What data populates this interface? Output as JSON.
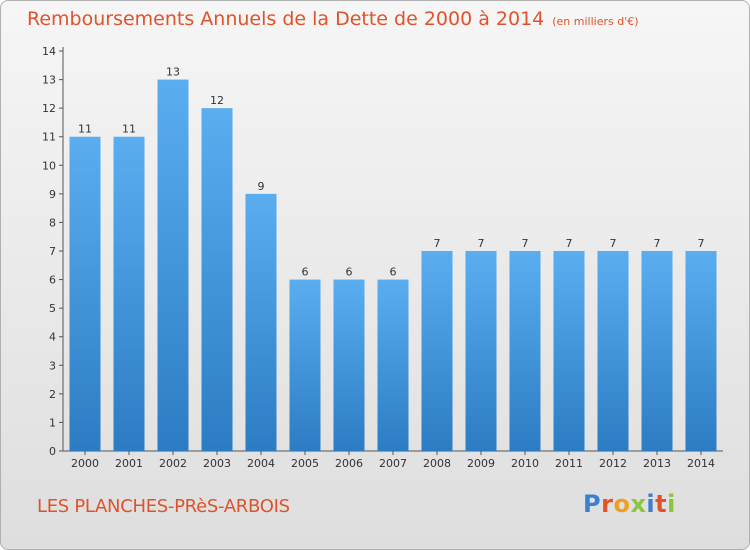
{
  "header": {
    "title": "Remboursements Annuels de la Dette de 2000 à 2014",
    "unit": "(en milliers d'€)"
  },
  "footer": {
    "commune": "LES PLANCHES-PRèS-ARBOIS",
    "logo": [
      "P",
      "r",
      "o",
      "x",
      "i",
      "t",
      "i"
    ]
  },
  "colors": {
    "title": "#e0532a",
    "bar_top": "#5aaef0",
    "bar_bottom": "#2c7cc3",
    "logo": [
      "#3a7fd1",
      "#e0532a",
      "#f0a020",
      "#8cc63f",
      "#3a7fd1",
      "#e0532a",
      "#8cc63f"
    ]
  },
  "chart_data": {
    "type": "bar",
    "categories": [
      "2000",
      "2001",
      "2002",
      "2003",
      "2004",
      "2005",
      "2006",
      "2007",
      "2008",
      "2009",
      "2010",
      "2011",
      "2012",
      "2013",
      "2014"
    ],
    "values": [
      11,
      11,
      13,
      12,
      9,
      6,
      6,
      6,
      7,
      7,
      7,
      7,
      7,
      7,
      7
    ],
    "ylim": [
      0,
      14
    ],
    "yticks": [
      0,
      1,
      2,
      3,
      4,
      5,
      6,
      7,
      8,
      9,
      10,
      11,
      12,
      13,
      14
    ],
    "grid": false,
    "legend": "none"
  }
}
